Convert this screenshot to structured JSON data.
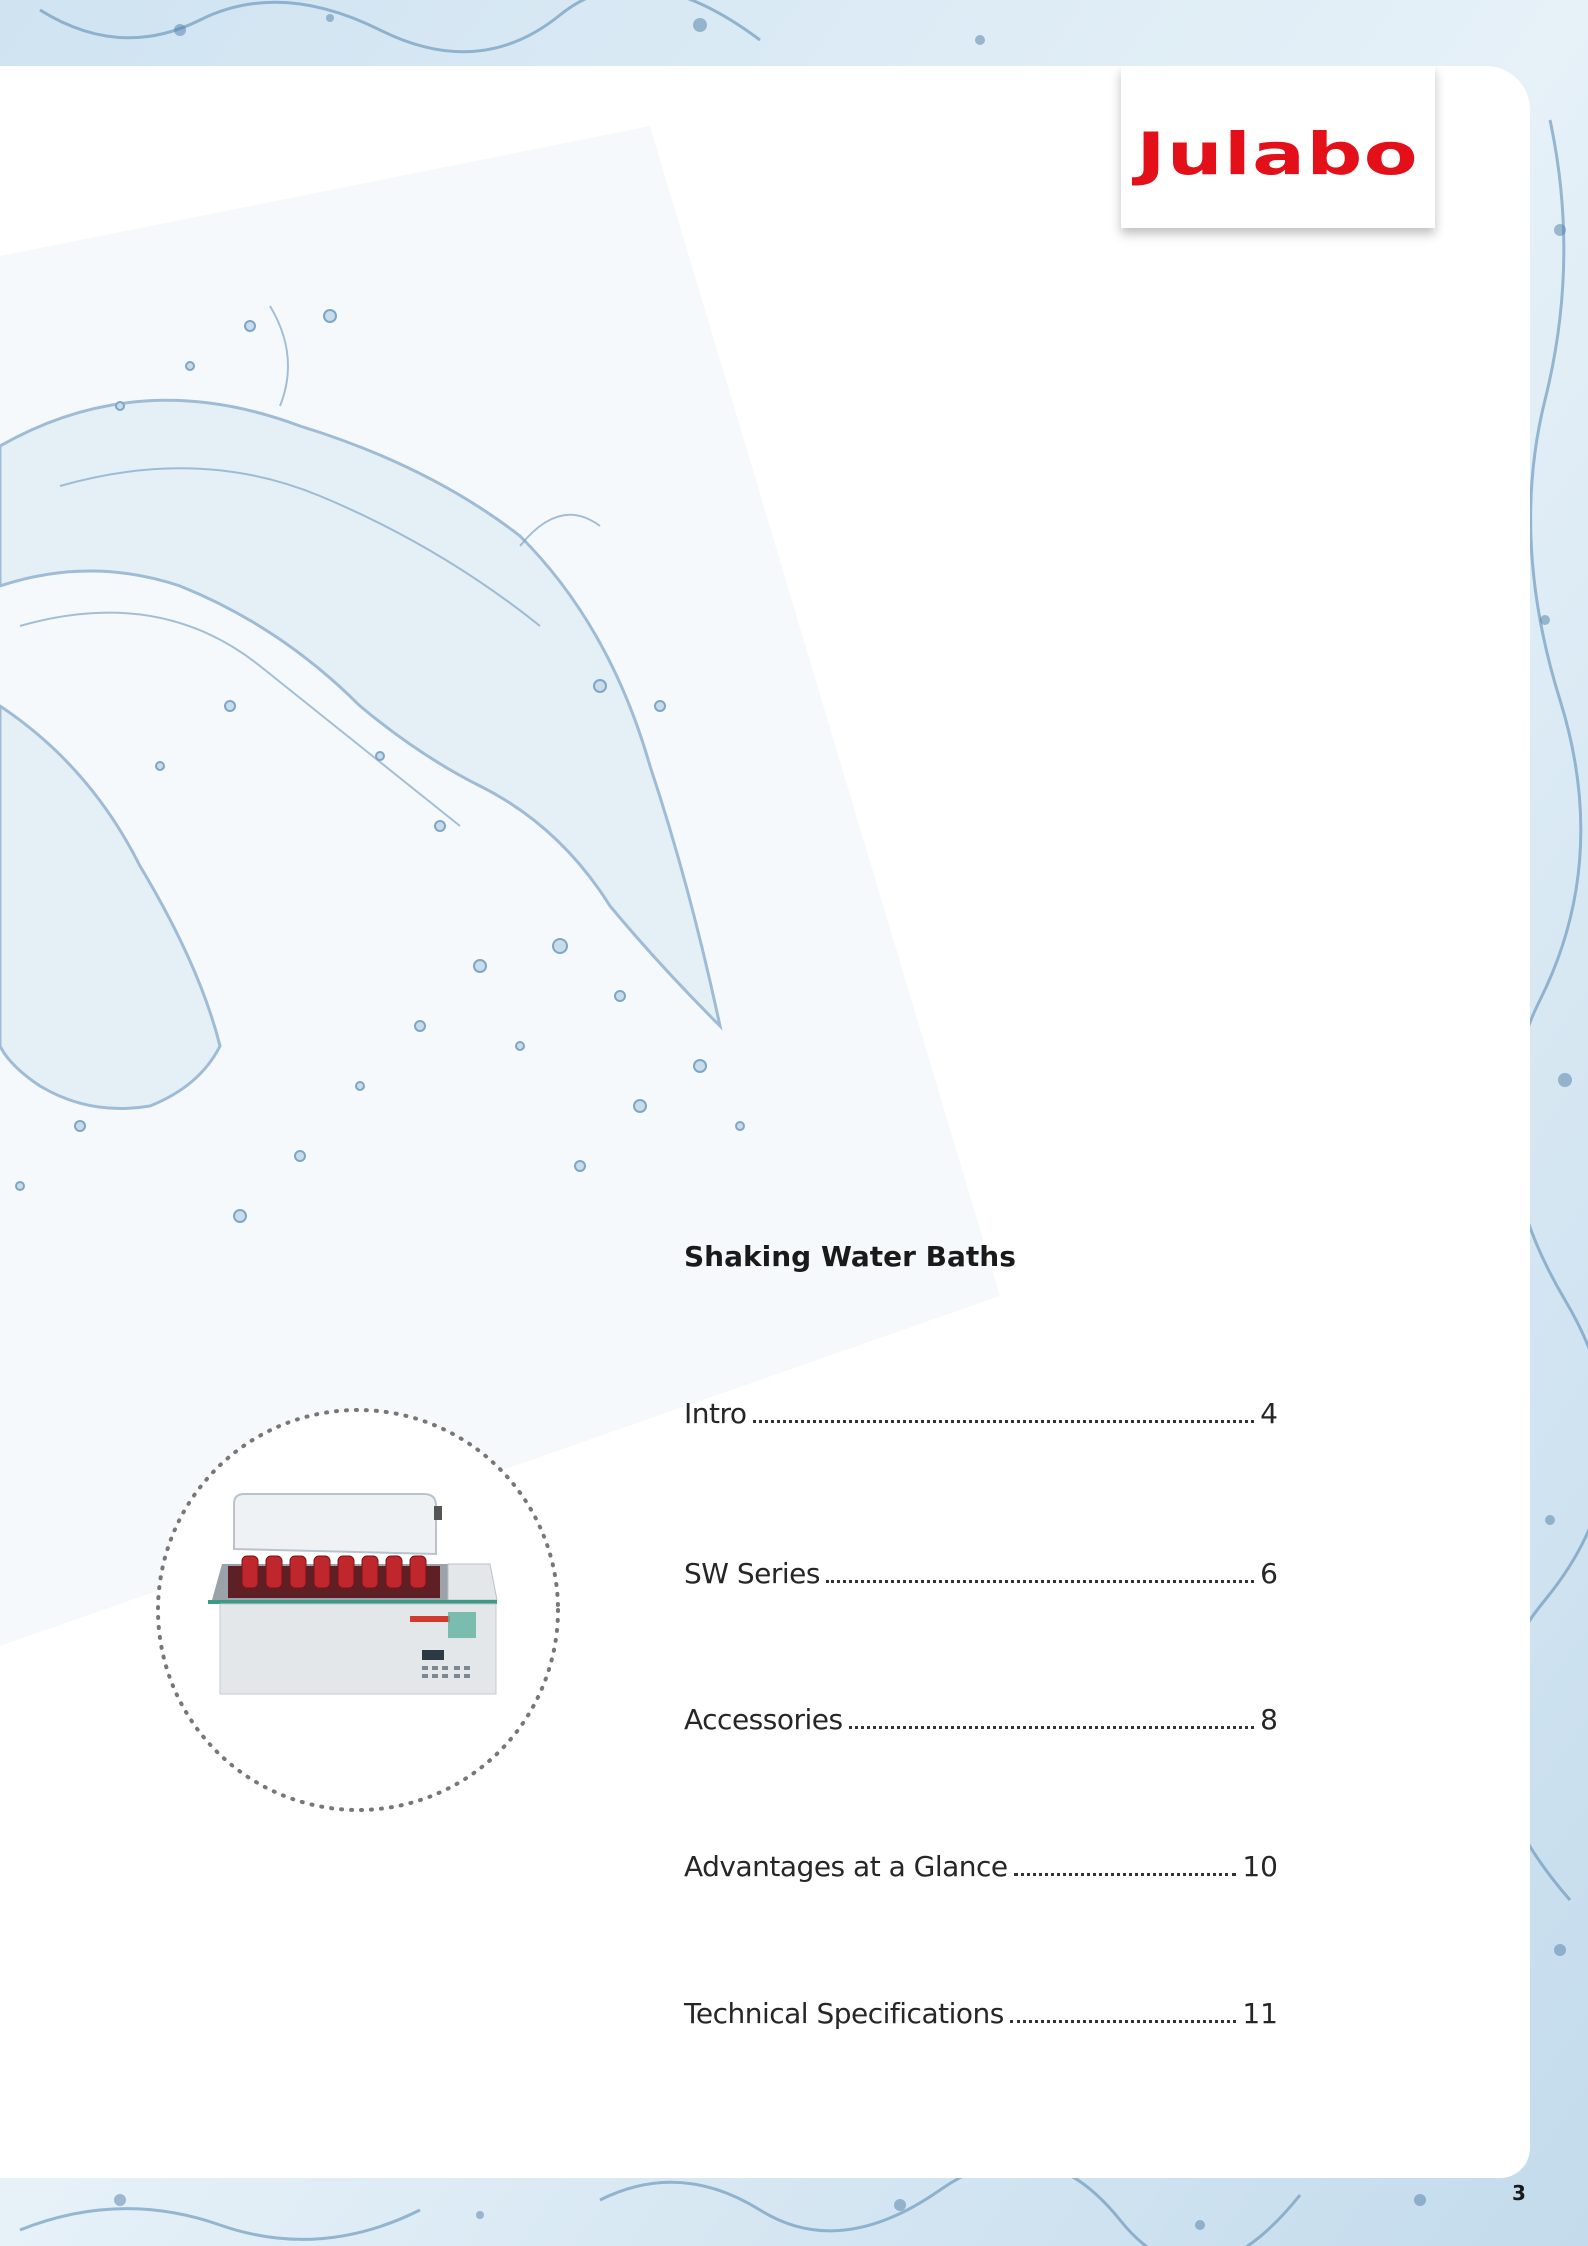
{
  "brand": {
    "logo_text": "Julabo",
    "logo_color": "#e3101a"
  },
  "section_title": "Shaking Water Baths",
  "toc": [
    {
      "label": "Intro",
      "page": "4"
    },
    {
      "label": "SW Series",
      "page": "6"
    },
    {
      "label": "Accessories",
      "page": "8"
    },
    {
      "label": "Advantages at a Glance",
      "page": "10"
    },
    {
      "label": "Technical Specifications",
      "page": "11"
    }
  ],
  "product_image": {
    "icon": "shaking-water-bath-icon"
  },
  "page_number": "3"
}
